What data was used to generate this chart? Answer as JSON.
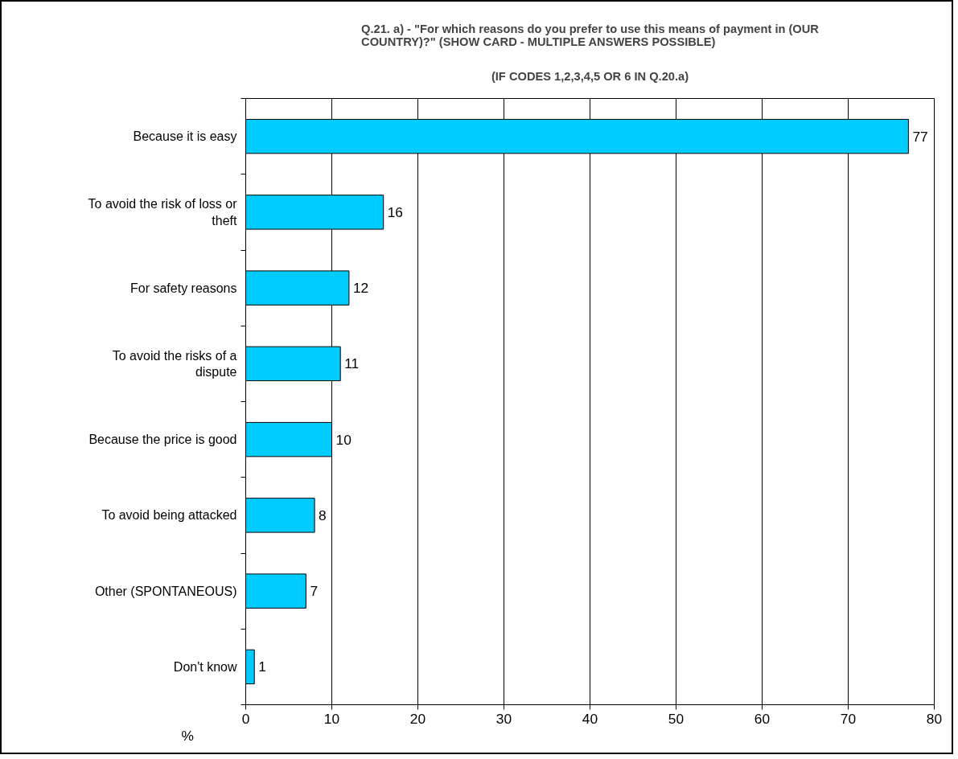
{
  "chart_data": {
    "type": "bar",
    "orientation": "horizontal",
    "title": "Q.21. a) - \"For which reasons do you prefer to use this means of payment in (OUR COUNTRY)?\" (SHOW CARD - MULTIPLE ANSWERS POSSIBLE)",
    "subtitle": "(IF CODES 1,2,3,4,5 OR 6 IN Q.20.a)",
    "xlabel": "%",
    "categories": [
      "Because it is easy",
      "To avoid the risk of loss or theft",
      "For safety reasons",
      "To avoid the risks of a dispute",
      "Because the price is good",
      "To avoid being attacked",
      "Other (SPONTANEOUS)",
      "Don't know"
    ],
    "values": [
      77,
      16,
      12,
      11,
      10,
      8,
      7,
      1
    ],
    "color": "#00ccff",
    "xlim": [
      0,
      80
    ],
    "xticks": [
      0,
      10,
      20,
      30,
      40,
      50,
      60,
      70,
      80
    ],
    "grid": "x",
    "data_labels": true
  }
}
